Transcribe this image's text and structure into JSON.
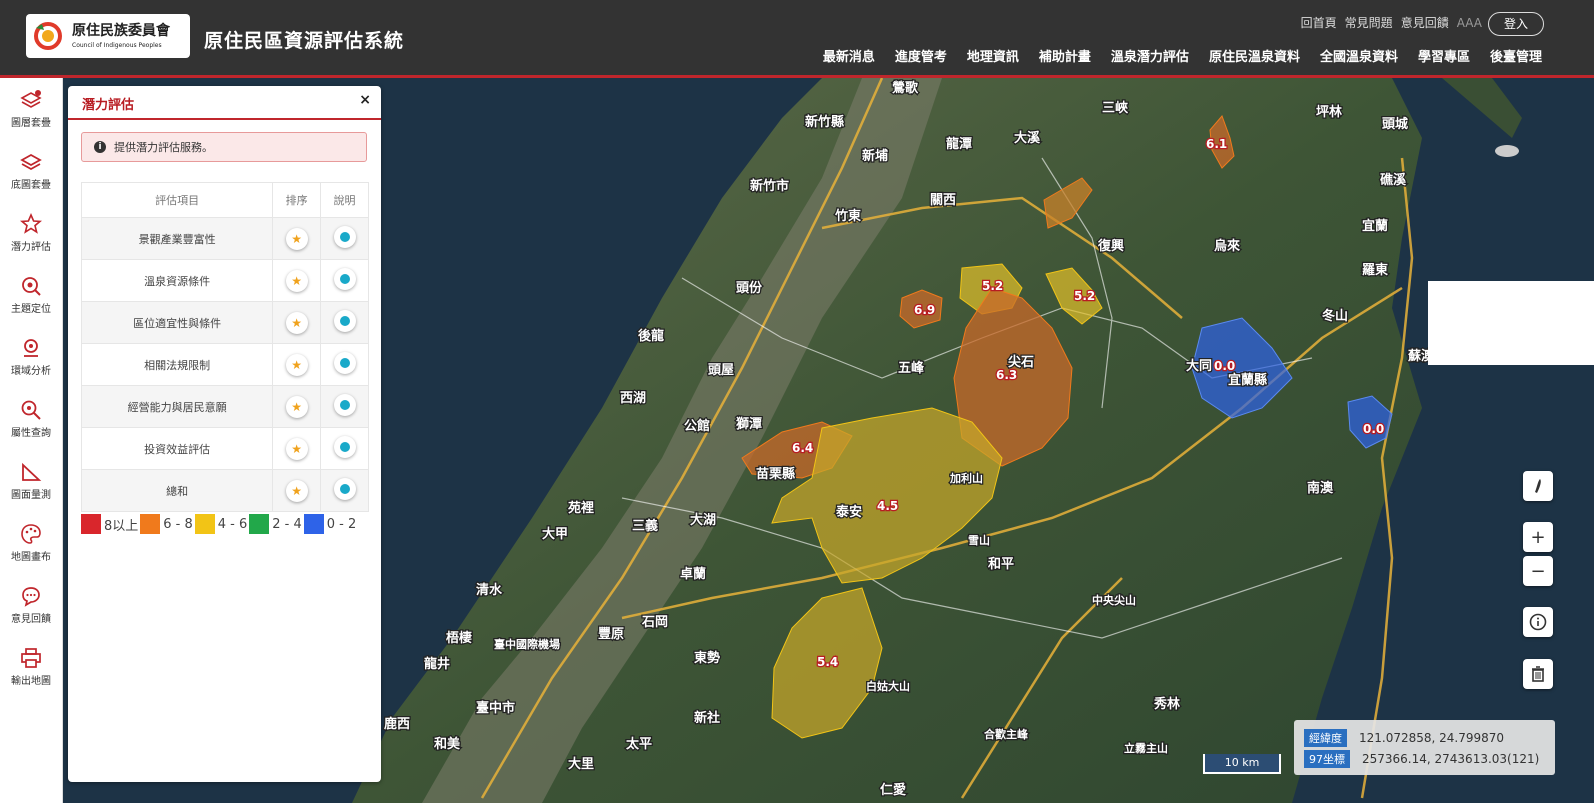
{
  "header": {
    "logo_zh": "原住民族委員會",
    "logo_en": "Council of Indigenous Peoples",
    "system_title": "原住民區資源評估系統",
    "top_links": [
      "回首頁",
      "常見問題",
      "意見回饋"
    ],
    "font_size_label": "AAA",
    "login_label": "登入",
    "nav": [
      "最新消息",
      "進度管考",
      "地理資訊",
      "補助計畫",
      "溫泉潛力評估",
      "原住民溫泉資料",
      "全國溫泉資料",
      "學習專區",
      "後臺管理"
    ]
  },
  "sidebar": {
    "items": [
      {
        "label": "圖層套疊",
        "icon": "layers-add-icon"
      },
      {
        "label": "底圖套疊",
        "icon": "basemap-icon"
      },
      {
        "label": "潛力評估",
        "icon": "star-icon"
      },
      {
        "label": "主題定位",
        "icon": "locate-icon"
      },
      {
        "label": "環域分析",
        "icon": "buffer-icon"
      },
      {
        "label": "屬性查詢",
        "icon": "query-icon"
      },
      {
        "label": "圖面量測",
        "icon": "measure-icon"
      },
      {
        "label": "地圖畫布",
        "icon": "palette-icon"
      },
      {
        "label": "意見回饋",
        "icon": "chat-icon"
      },
      {
        "label": "輸出地圖",
        "icon": "printer-icon"
      }
    ]
  },
  "panel": {
    "title": "潛力評估",
    "close": "×",
    "notice": "提供潛力評估服務。",
    "columns": [
      "評估項目",
      "排序",
      "說明"
    ],
    "rows": [
      "景觀產業豐富性",
      "溫泉資源條件",
      "區位適宜性與條件",
      "相關法規限制",
      "經營能力與居民意願",
      "投資效益評估",
      "總和"
    ],
    "legend": [
      {
        "label": "8以上",
        "color": "#d9262c"
      },
      {
        "label": "6 - 8",
        "color": "#f07a1c"
      },
      {
        "label": "4 - 6",
        "color": "#f2c416"
      },
      {
        "label": "2 - 4",
        "color": "#22a84a"
      },
      {
        "label": "0 - 2",
        "color": "#2e63e8"
      }
    ]
  },
  "map": {
    "places": [
      "新竹縣",
      "新竹市",
      "竹東",
      "新埔",
      "關西",
      "龍潭",
      "大溪",
      "三峽",
      "坪林",
      "頭城",
      "礁溪",
      "宜蘭",
      "羅東",
      "冬山",
      "烏來",
      "復興",
      "五峰",
      "尖石",
      "頭份",
      "後龍",
      "頭屋",
      "西湖",
      "公館",
      "獅潭",
      "苗栗縣",
      "泰安",
      "大湖",
      "卓蘭",
      "苑裡",
      "三義",
      "大甲",
      "清水",
      "梧棲",
      "龍井",
      "臺中國際機場",
      "豐原",
      "石岡",
      "東勢",
      "新社",
      "臺中市",
      "太平",
      "大里",
      "和美",
      "鹿西",
      "和平",
      "雪山",
      "加利山",
      "中央尖山",
      "南澳",
      "大同",
      "宜蘭縣",
      "秀林",
      "白姑大山",
      "合歡主峰",
      "立霧主山",
      "仁愛",
      "蘇澳",
      "鶯歌"
    ],
    "zones": [
      {
        "value": "6.1",
        "class": "6 - 8"
      },
      {
        "value": "5.2",
        "class": "4 - 6"
      },
      {
        "value": "5.2",
        "class": "4 - 6"
      },
      {
        "value": "6.9",
        "class": "6 - 8"
      },
      {
        "value": "6.3",
        "class": "6 - 8"
      },
      {
        "value": "6.4",
        "class": "6 - 8"
      },
      {
        "value": "4.5",
        "class": "4 - 6"
      },
      {
        "value": "5.4",
        "class": "4 - 6"
      },
      {
        "value": "0.0",
        "class": "0 - 2"
      },
      {
        "value": "0.0",
        "class": "0 - 2"
      }
    ],
    "scale_label": "10 km",
    "coords": {
      "wgs_label": "經緯度",
      "wgs_value": "121.072858, 24.799870",
      "twd_label": "97坐標",
      "twd_value": "257366.14, 2743613.03(121)"
    },
    "controls": [
      "pen-icon",
      "zoom-in-icon",
      "zoom-out-icon",
      "info-icon",
      "trash-icon"
    ]
  }
}
